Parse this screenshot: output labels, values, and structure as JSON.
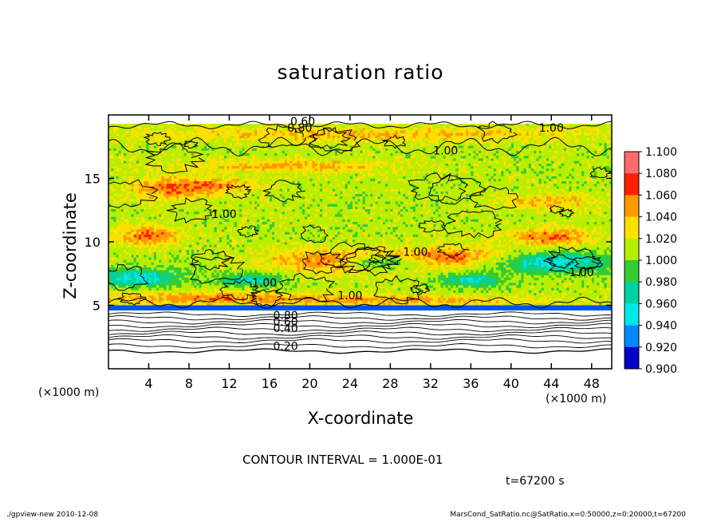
{
  "chart_data": {
    "type": "heatmap",
    "title": "saturation ratio",
    "xlabel": "X-coordinate",
    "ylabel": "Z-coordinate",
    "x_unit": "(×1000 m)",
    "y_unit": "(×1000 m)",
    "xlim": [
      0,
      50
    ],
    "ylim": [
      0,
      20
    ],
    "x_ticks": [
      4,
      8,
      12,
      16,
      20,
      24,
      28,
      32,
      36,
      40,
      44,
      48
    ],
    "y_ticks": [
      5,
      10,
      15
    ],
    "colorbar": {
      "levels": [
        "1.100",
        "1.080",
        "1.060",
        "1.040",
        "1.020",
        "1.000",
        "0.980",
        "0.960",
        "0.940",
        "0.920",
        "0.900"
      ],
      "colors": [
        "#ffc8c8",
        "#ff6a6a",
        "#ff2000",
        "#ff9900",
        "#ffe000",
        "#b8ee00",
        "#33cc33",
        "#00d2a0",
        "#00e8e8",
        "#0088ff",
        "#0000c8",
        "#6600aa"
      ]
    },
    "contour_labels": [
      "0.60",
      "0.80",
      "1.00",
      "1.00",
      "1.00",
      "1.00",
      "1.00",
      "1.00",
      "1.00",
      "0.80",
      "0.60",
      "0.40",
      "0.20"
    ],
    "contour_interval": "CONTOUR INTERVAL = 1.000E-01",
    "time": "t=67200 s"
  },
  "footer": {
    "left": "./gpview-new  2010-12-08",
    "right": "MarsCond_SatRatio.nc@SatRatio,x=0:50000,z=0:20000,t=67200"
  }
}
